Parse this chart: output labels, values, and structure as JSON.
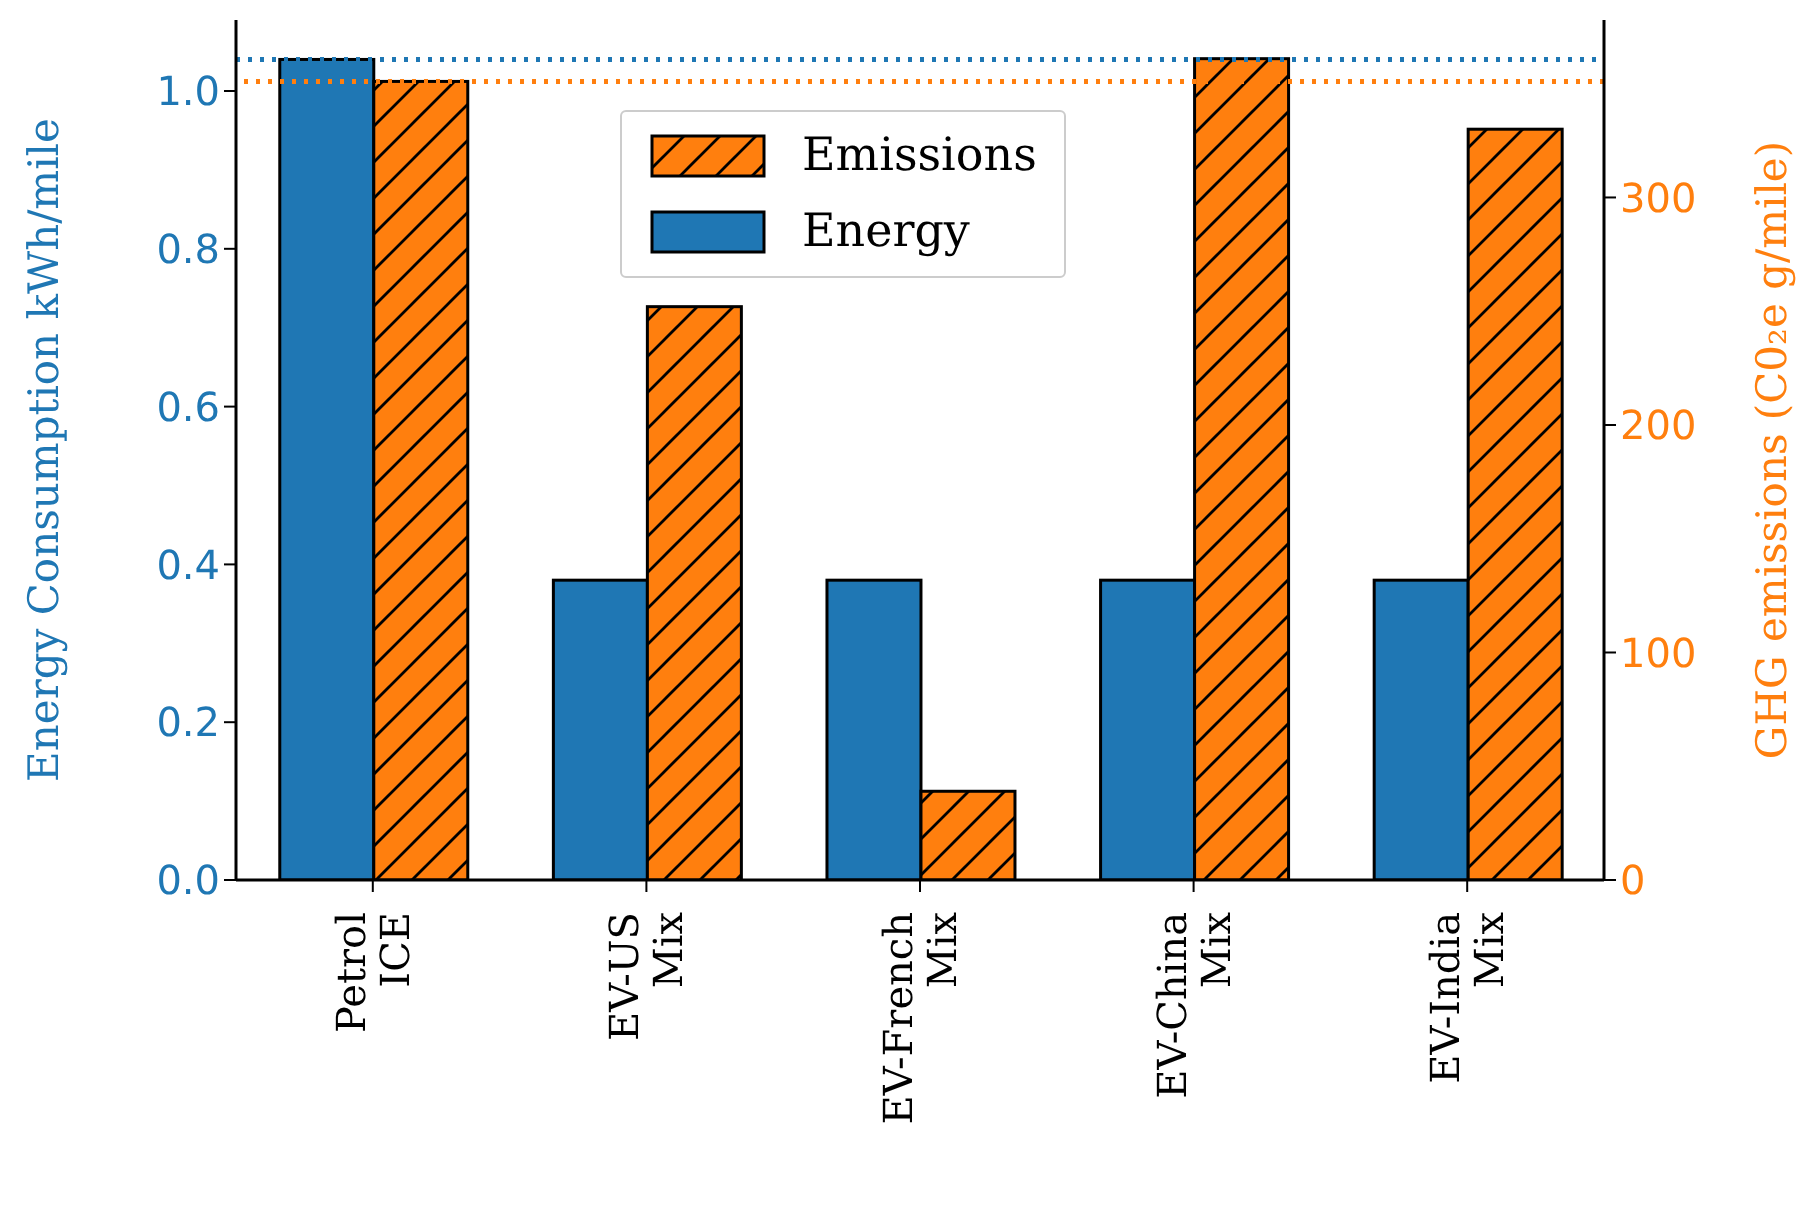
{
  "chart_data": {
    "type": "bar",
    "categories": [
      "Petrol\nICE",
      "EV-US\nMix",
      "EV-French\nMix",
      "EV-China\nMix",
      "EV-India\nMix"
    ],
    "series": [
      {
        "name": "Energy",
        "color": "#1f77b4",
        "values": [
          1.04,
          0.38,
          0.38,
          0.38,
          0.38
        ]
      },
      {
        "name": "Emissions",
        "color": "#ff7f0e",
        "axis": "y2",
        "values": [
          351,
          252,
          39,
          361,
          330
        ]
      }
    ],
    "ylabel": "Energy Consumption kWh/mile",
    "y2label": "GHG emissions (C0₂e g/mile)",
    "ylim": [
      0,
      1.09
    ],
    "yticks": [
      {
        "value": 0,
        "label": "0.0"
      },
      0.2,
      0.4,
      0.6,
      0.8,
      {
        "value": 1,
        "label": "1.0"
      }
    ],
    "y2lim": [
      0,
      378
    ],
    "y2ticks": [
      0,
      100,
      200,
      300
    ],
    "ref_lines": [
      {
        "axis": "y",
        "value": 1.04,
        "color": "#1f77b4",
        "line_style": "dotted"
      },
      {
        "axis": "y2",
        "value": 351,
        "color": "#ff7f0e",
        "line_style": "dotted"
      }
    ],
    "legend": "top",
    "grid": false
  }
}
